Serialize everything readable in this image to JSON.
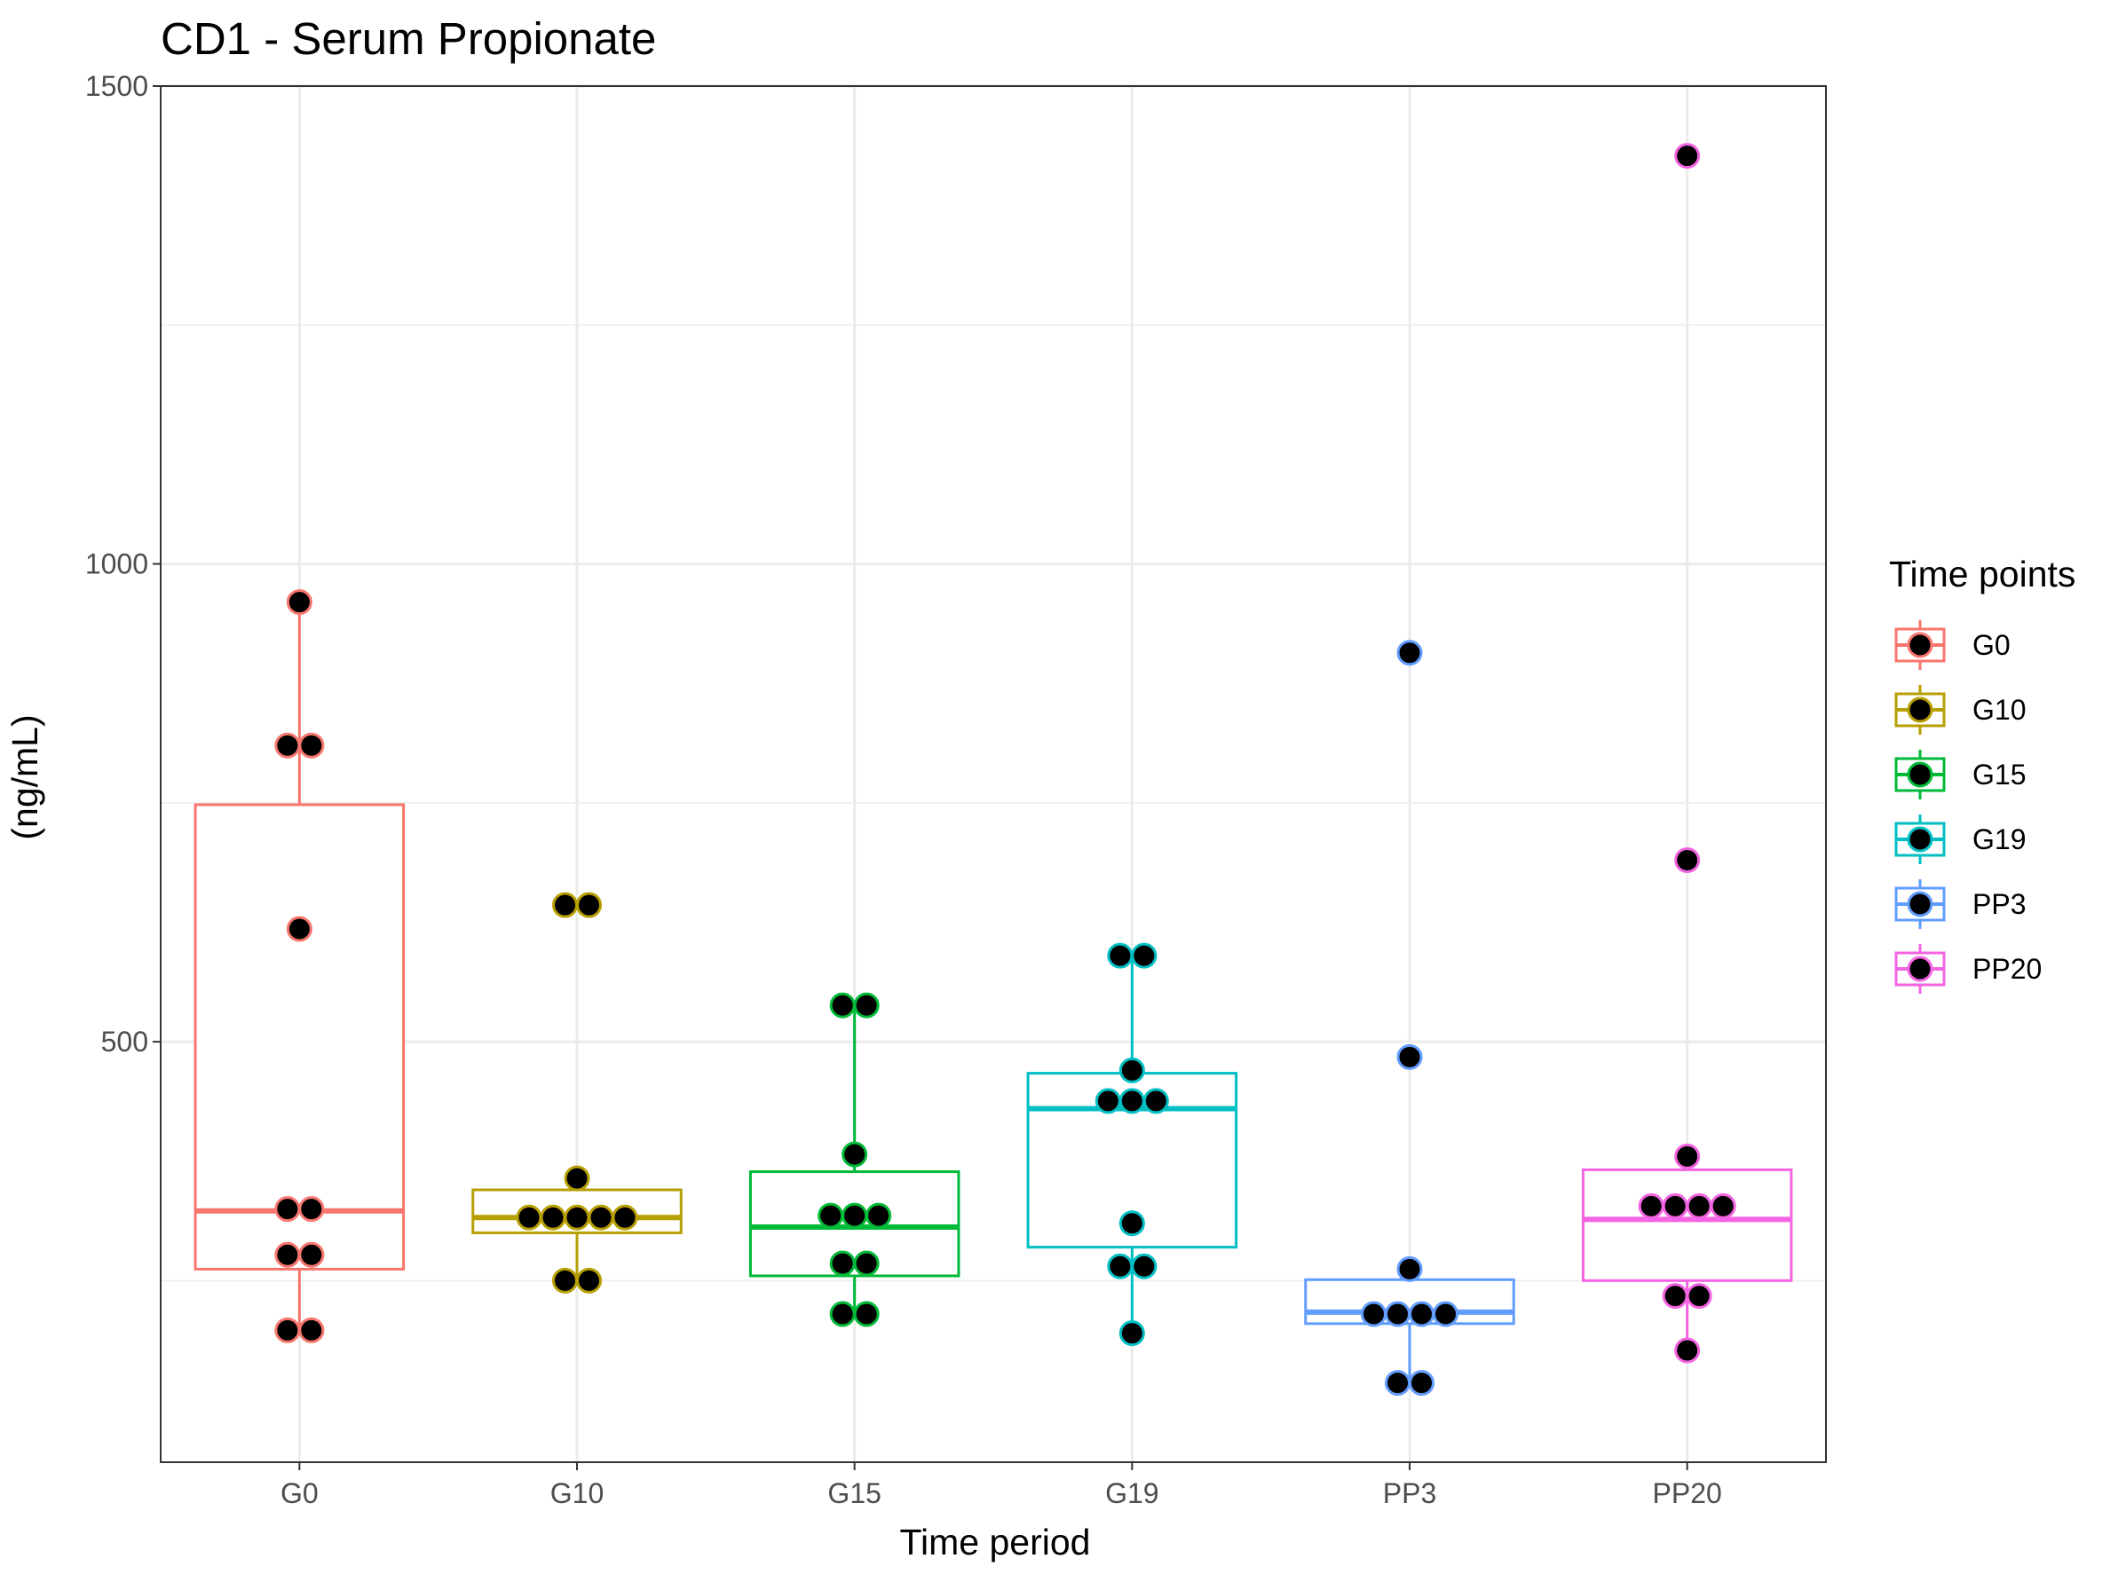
{
  "chart_data": {
    "type": "box",
    "title": "CD1 - Serum Propionate",
    "xlabel": "Time period",
    "ylabel": "(ng/mL)",
    "ylim": [
      60,
      1500
    ],
    "yticks": [
      500,
      1000,
      1500
    ],
    "grid": true,
    "legend": {
      "title": "Time points",
      "placement": "right"
    },
    "categories": [
      "G0",
      "G10",
      "G15",
      "G19",
      "PP3",
      "PP20"
    ],
    "series": [
      {
        "name": "G0",
        "color": "#F8766D",
        "box": {
          "whisker_low": 198,
          "q1": 262,
          "median": 323,
          "q3": 748,
          "whisker_high": 960
        },
        "points": [
          960,
          810,
          810,
          618,
          325,
          325,
          277,
          277,
          198,
          198
        ]
      },
      {
        "name": "G10",
        "color": "#B79F00",
        "box": {
          "whisker_low": 250,
          "q1": 300,
          "median": 316,
          "q3": 345,
          "whisker_high": 357
        },
        "points": [
          643,
          643,
          316,
          316,
          316,
          316,
          316,
          357,
          250,
          250
        ]
      },
      {
        "name": "G15",
        "color": "#00BA38",
        "box": {
          "whisker_low": 215,
          "q1": 255,
          "median": 306,
          "q3": 364,
          "whisker_high": 538
        },
        "points": [
          538,
          538,
          382,
          318,
          318,
          318,
          268,
          268,
          215,
          215
        ]
      },
      {
        "name": "G19",
        "color": "#00BFC4",
        "box": {
          "whisker_low": 195,
          "q1": 285,
          "median": 430,
          "q3": 467,
          "whisker_high": 590
        },
        "points": [
          590,
          590,
          470,
          438,
          438,
          438,
          310,
          265,
          265,
          195
        ]
      },
      {
        "name": "PP3",
        "color": "#619CFF",
        "box": {
          "whisker_low": 143,
          "q1": 205,
          "median": 217,
          "q3": 251,
          "whisker_high": 262
        },
        "points": [
          907,
          484,
          262,
          215,
          215,
          215,
          215,
          143,
          143
        ]
      },
      {
        "name": "PP20",
        "color": "#F564E3",
        "box": {
          "whisker_low": 177,
          "q1": 250,
          "median": 314,
          "q3": 366,
          "whisker_high": 380
        },
        "points": [
          1427,
          690,
          380,
          328,
          328,
          328,
          328,
          234,
          234,
          177
        ]
      }
    ]
  }
}
